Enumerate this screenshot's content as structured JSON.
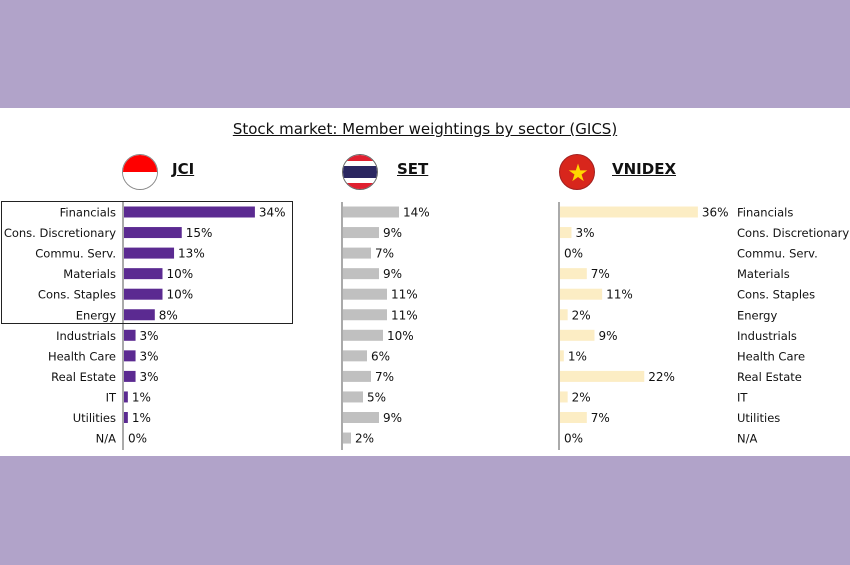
{
  "chart_data": [
    {
      "type": "bar",
      "orientation": "horizontal",
      "title": "Stock market: Member weightings by sector (GICS)",
      "index": "JCI",
      "color": "#5b2a91",
      "flag": "indonesia-flag-icon",
      "categories": [
        "Financials",
        "Cons. Discretionary",
        "Commu. Serv.",
        "Materials",
        "Cons. Staples",
        "Energy",
        "Industrials",
        "Health Care",
        "Real Estate",
        "IT",
        "Utilities",
        "N/A"
      ],
      "values": [
        34,
        15,
        13,
        10,
        10,
        8,
        3,
        3,
        3,
        1,
        1,
        0
      ],
      "unit": "%",
      "highlighted_categories": [
        "Financials",
        "Cons. Discretionary",
        "Commu. Serv.",
        "Materials",
        "Cons. Staples",
        "Energy"
      ]
    },
    {
      "type": "bar",
      "orientation": "horizontal",
      "index": "SET",
      "color": "#c0c0c0",
      "flag": "thailand-flag-icon",
      "values": [
        14,
        9,
        7,
        9,
        11,
        11,
        10,
        6,
        7,
        5,
        9,
        2
      ],
      "unit": "%"
    },
    {
      "type": "bar",
      "orientation": "horizontal",
      "index": "VNIDEX",
      "color": "#fcedc4",
      "flag": "vietnam-flag-icon",
      "values": [
        36,
        3,
        0,
        7,
        11,
        2,
        9,
        1,
        22,
        2,
        7,
        0
      ],
      "unit": "%"
    }
  ]
}
